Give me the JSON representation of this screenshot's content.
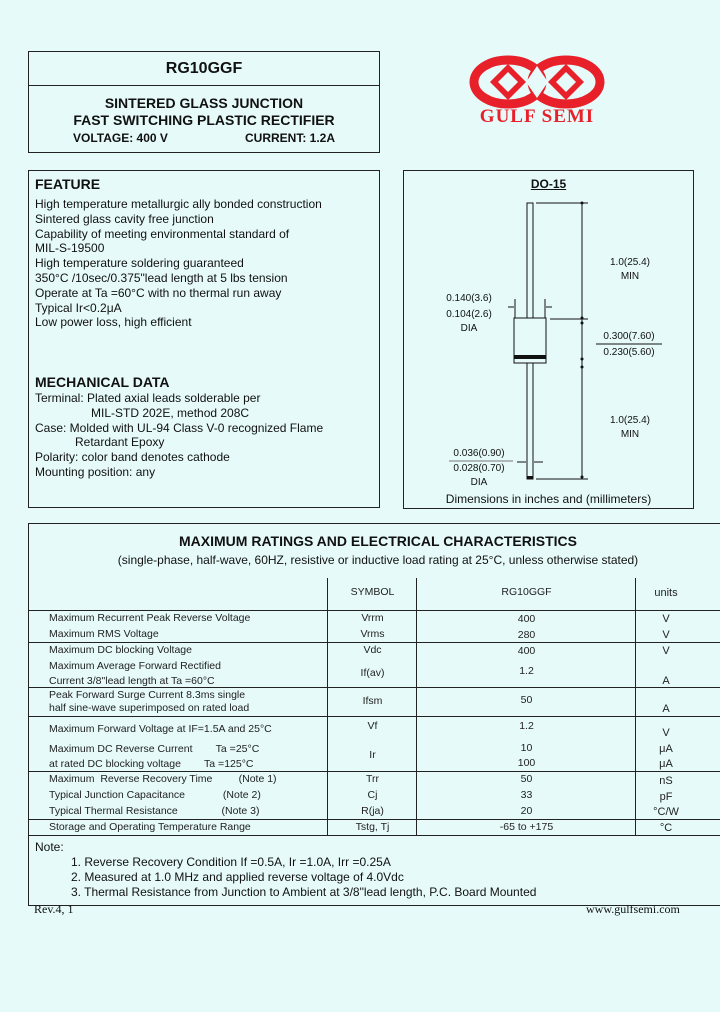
{
  "header": {
    "part_number": "RG10GGF",
    "line1": "SINTERED GLASS JUNCTION",
    "line2": "FAST SWITCHING PLASTIC RECTIFIER",
    "voltage": "VOLTAGE: 400 V",
    "current": "CURRENT: 1.2A"
  },
  "logo": {
    "text": "GULF SEMI",
    "color": "#e8202a"
  },
  "feature": {
    "title": "FEATURE",
    "items": [
      "High temperature metallurgic ally bonded construction",
      "Sintered glass cavity free junction",
      "Capability of meeting environmental standard of",
      "MIL-S-19500",
      "High temperature soldering guaranteed",
      "350°C /10sec/0.375\"lead length at 5 lbs tension",
      "Operate at Ta =60°C with no thermal run away",
      "Typical Ir<0.2μA",
      "Low power loss, high efficient"
    ]
  },
  "mechanical": {
    "title": "MECHANICAL DATA",
    "items": [
      "Terminal: Plated axial leads solderable per",
      "MIL-STD 202E, method 208C",
      "Case: Molded with UL-94 Class V-0 recognized Flame",
      "Retardant Epoxy",
      "Polarity: color band denotes cathode",
      "Mounting position: any"
    ]
  },
  "diagram": {
    "package": "DO-15",
    "lead_length_top": "1.0(25.4)",
    "lead_length_top_min": "MIN",
    "body_dia_max": "0.140(3.6)",
    "body_dia_min": "0.104(2.6)",
    "body_dia_label": "DIA",
    "body_len_max": "0.300(7.60)",
    "body_len_min": "0.230(5.60)",
    "lead_length_bottom": "1.0(25.4)",
    "lead_length_bottom_min": "MIN",
    "lead_dia_max": "0.036(0.90)",
    "lead_dia_min": "0.028(0.70)",
    "lead_dia_label": "DIA",
    "caption": "Dimensions in inches and (millimeters)"
  },
  "ratings": {
    "title": "MAXIMUM RATINGS AND ELECTRICAL CHARACTERISTICS",
    "subtitle": "(single-phase, half-wave, 60HZ, resistive or inductive load rating at 25°C, unless otherwise stated)",
    "columns": [
      "",
      "SYMBOL",
      "RG10GGF",
      "units"
    ],
    "rows": [
      {
        "param": "Maximum Recurrent Peak Reverse Voltage",
        "symbol": "Vrrm",
        "value": "400",
        "unit": "V"
      },
      {
        "param": "Maximum RMS Voltage",
        "symbol": "Vrms",
        "value": "280",
        "unit": "V"
      },
      {
        "param": "Maximum DC blocking Voltage",
        "symbol": "Vdc",
        "value": "400",
        "unit": "V"
      },
      {
        "param": "Maximum Average Forward Rectified",
        "param2": "Current 3/8\"lead length at Ta =60°C",
        "symbol": "If(av)",
        "value": "1.2",
        "unit": "A"
      },
      {
        "param": "Peak Forward Surge Current 8.3ms single",
        "param2": "half sine-wave superimposed on rated load",
        "symbol": "Ifsm",
        "value": "50",
        "unit": "A"
      },
      {
        "param": "Maximum Forward Voltage at IF=1.5A and 25°C",
        "symbol": "Vf",
        "value": "1.2",
        "unit": "V"
      },
      {
        "param": "Maximum DC Reverse Current        Ta =25°C",
        "param2": "at rated DC blocking voltage        Ta =125°C",
        "symbol": "Ir",
        "value": "10",
        "value2": "100",
        "unit": "μA",
        "unit2": "μA"
      },
      {
        "param": "Maximum  Reverse Recovery Time         (Note 1)",
        "symbol": "Trr",
        "value": "50",
        "unit": "nS"
      },
      {
        "param": "Typical Junction Capacitance             (Note 2)",
        "symbol": "Cj",
        "value": "33",
        "unit": "pF"
      },
      {
        "param": "Typical Thermal Resistance               (Note 3)",
        "symbol": "R(ja)",
        "value": "20",
        "unit": "°C/W"
      },
      {
        "param": "Storage and Operating Temperature Range",
        "symbol": "Tstg, Tj",
        "value": "-65 to +175",
        "unit": "°C"
      }
    ]
  },
  "notes": {
    "title": "Note:",
    "items": [
      "1. Reverse Recovery Condition If =0.5A, Ir =1.0A, Irr =0.25A",
      "2. Measured at 1.0 MHz and applied reverse voltage of 4.0Vdc",
      "3. Thermal Resistance from Junction to Ambient at 3/8\"lead length, P.C. Board Mounted"
    ]
  },
  "footer": {
    "revision": "Rev.4, 1",
    "website": "www.gulfsemi.com"
  }
}
